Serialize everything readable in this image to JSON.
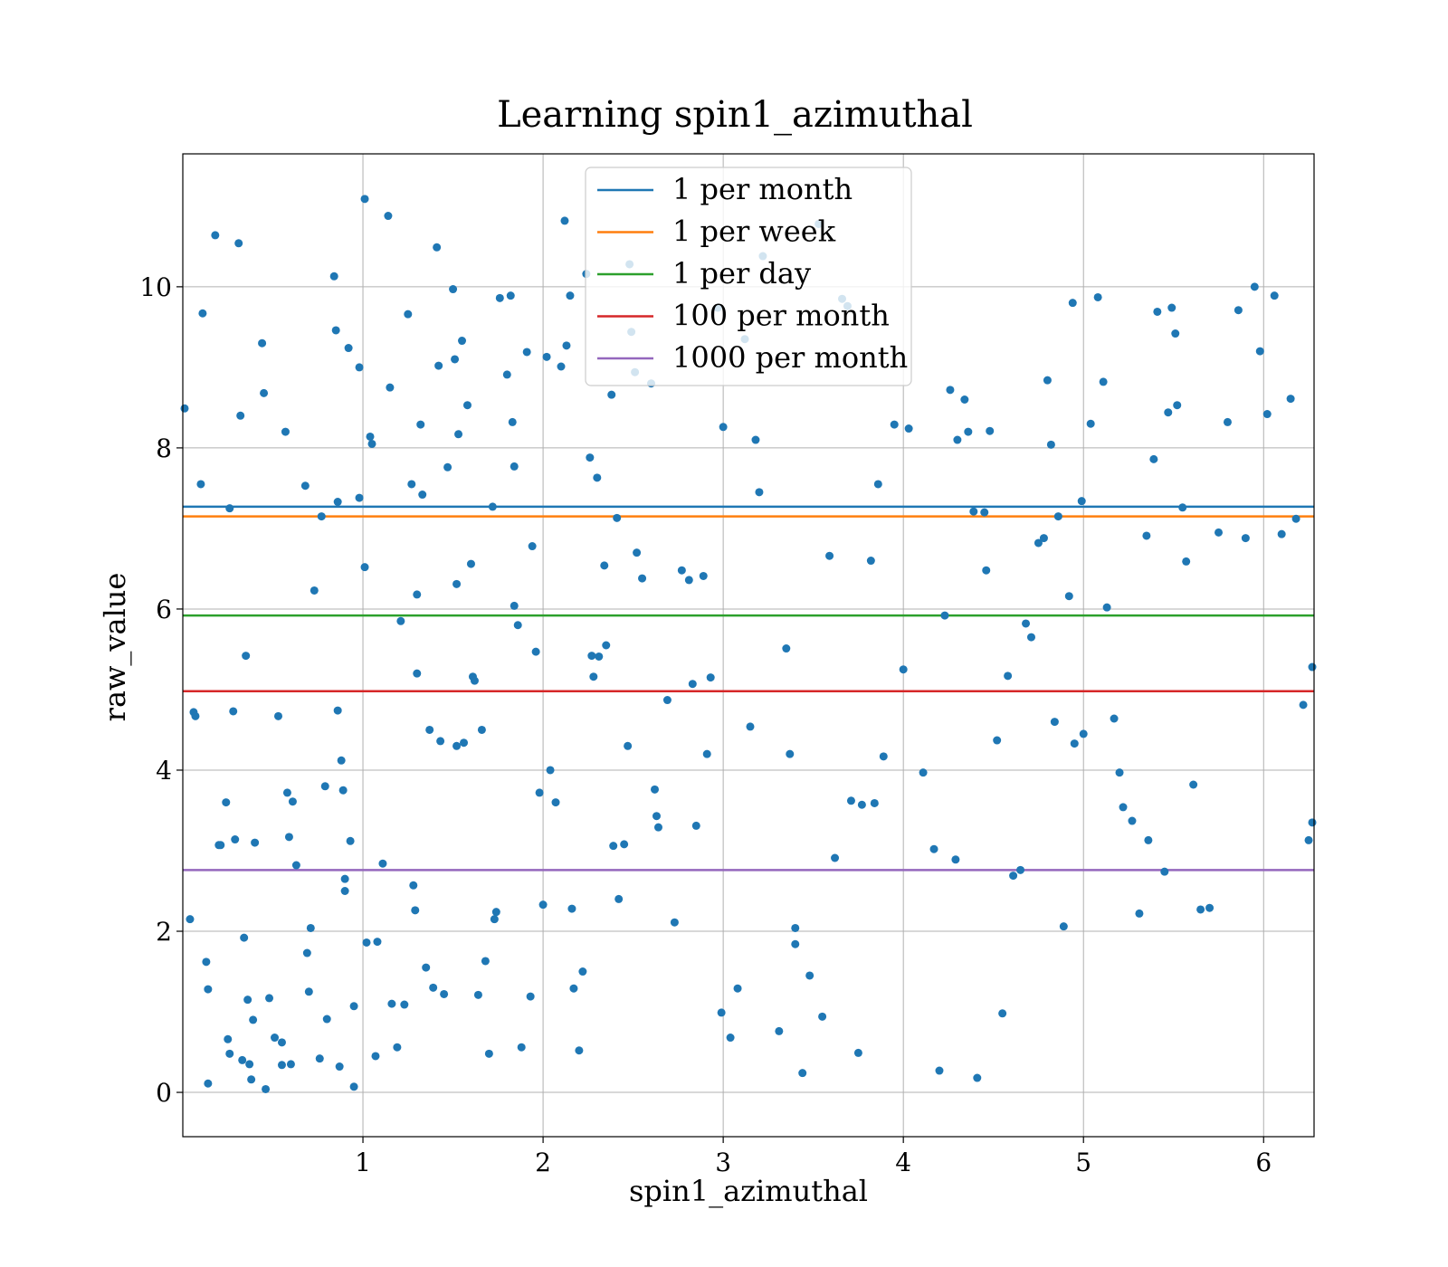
{
  "chart_data": {
    "type": "scatter",
    "title": "Learning spin1_azimuthal",
    "xlabel": "spin1_azimuthal",
    "ylabel": "raw_value",
    "xlim": [
      0.0,
      6.28
    ],
    "ylim": [
      -0.55,
      11.65
    ],
    "xticks": [
      1,
      2,
      3,
      4,
      5,
      6
    ],
    "yticks": [
      0,
      2,
      4,
      6,
      8,
      10
    ],
    "grid": true,
    "legend_position": "upper center",
    "point_color": "#1f77b4",
    "hlines": [
      {
        "name": "1 per month",
        "y": 7.27,
        "color": "#1f77b4"
      },
      {
        "name": "1 per week",
        "y": 7.15,
        "color": "#ff7f0e"
      },
      {
        "name": "1 per day",
        "y": 5.92,
        "color": "#2ca02c"
      },
      {
        "name": "100 per month",
        "y": 4.98,
        "color": "#d62728"
      },
      {
        "name": "1000 per month",
        "y": 2.76,
        "color": "#9467bd"
      }
    ],
    "points": [
      [
        0.01,
        8.49
      ],
      [
        0.04,
        2.15
      ],
      [
        0.06,
        4.72
      ],
      [
        0.07,
        4.67
      ],
      [
        0.1,
        7.55
      ],
      [
        0.11,
        9.67
      ],
      [
        0.14,
        0.11
      ],
      [
        0.13,
        1.62
      ],
      [
        0.14,
        1.28
      ],
      [
        0.18,
        10.64
      ],
      [
        0.2,
        3.07
      ],
      [
        0.21,
        3.07
      ],
      [
        0.24,
        3.6
      ],
      [
        0.26,
        7.25
      ],
      [
        0.25,
        0.66
      ],
      [
        0.26,
        0.48
      ],
      [
        0.28,
        4.73
      ],
      [
        0.29,
        3.14
      ],
      [
        0.31,
        10.54
      ],
      [
        0.32,
        8.4
      ],
      [
        0.33,
        0.4
      ],
      [
        0.34,
        1.92
      ],
      [
        0.35,
        5.42
      ],
      [
        0.36,
        1.15
      ],
      [
        0.37,
        0.35
      ],
      [
        0.38,
        0.16
      ],
      [
        0.39,
        0.9
      ],
      [
        0.4,
        3.1
      ],
      [
        0.44,
        9.3
      ],
      [
        0.45,
        8.68
      ],
      [
        0.46,
        0.04
      ],
      [
        0.48,
        1.17
      ],
      [
        0.51,
        0.68
      ],
      [
        0.53,
        4.67
      ],
      [
        0.55,
        0.62
      ],
      [
        0.55,
        0.34
      ],
      [
        0.57,
        8.2
      ],
      [
        0.58,
        3.72
      ],
      [
        0.59,
        3.17
      ],
      [
        0.61,
        3.61
      ],
      [
        0.6,
        0.35
      ],
      [
        0.63,
        2.82
      ],
      [
        0.68,
        7.53
      ],
      [
        0.69,
        1.73
      ],
      [
        0.7,
        1.25
      ],
      [
        0.71,
        2.04
      ],
      [
        0.73,
        6.23
      ],
      [
        0.76,
        0.42
      ],
      [
        0.77,
        7.15
      ],
      [
        0.79,
        3.8
      ],
      [
        0.8,
        0.91
      ],
      [
        0.84,
        10.13
      ],
      [
        0.85,
        9.46
      ],
      [
        0.86,
        4.74
      ],
      [
        0.86,
        7.33
      ],
      [
        0.87,
        0.32
      ],
      [
        0.88,
        4.12
      ],
      [
        0.89,
        3.75
      ],
      [
        0.9,
        2.65
      ],
      [
        0.9,
        2.5
      ],
      [
        0.92,
        9.24
      ],
      [
        0.93,
        3.12
      ],
      [
        0.95,
        1.07
      ],
      [
        0.95,
        0.07
      ],
      [
        0.98,
        9.0
      ],
      [
        0.98,
        7.38
      ],
      [
        1.01,
        11.09
      ],
      [
        1.01,
        6.52
      ],
      [
        1.02,
        1.86
      ],
      [
        1.04,
        8.14
      ],
      [
        1.05,
        8.05
      ],
      [
        1.07,
        0.45
      ],
      [
        1.08,
        1.87
      ],
      [
        1.11,
        2.84
      ],
      [
        1.14,
        10.88
      ],
      [
        1.15,
        8.75
      ],
      [
        1.16,
        1.1
      ],
      [
        1.19,
        0.56
      ],
      [
        1.21,
        5.85
      ],
      [
        1.23,
        1.09
      ],
      [
        1.25,
        9.66
      ],
      [
        1.27,
        7.55
      ],
      [
        1.28,
        2.57
      ],
      [
        1.29,
        2.26
      ],
      [
        1.3,
        6.18
      ],
      [
        1.3,
        5.2
      ],
      [
        1.32,
        8.29
      ],
      [
        1.33,
        7.42
      ],
      [
        1.35,
        1.55
      ],
      [
        1.37,
        4.5
      ],
      [
        1.39,
        1.3
      ],
      [
        1.41,
        10.49
      ],
      [
        1.42,
        9.02
      ],
      [
        1.43,
        4.36
      ],
      [
        1.45,
        1.22
      ],
      [
        1.47,
        7.76
      ],
      [
        1.5,
        9.97
      ],
      [
        1.51,
        9.1
      ],
      [
        1.52,
        6.31
      ],
      [
        1.52,
        4.3
      ],
      [
        1.53,
        8.17
      ],
      [
        1.55,
        9.33
      ],
      [
        1.56,
        4.34
      ],
      [
        1.58,
        8.53
      ],
      [
        1.6,
        6.56
      ],
      [
        1.61,
        5.16
      ],
      [
        1.62,
        5.11
      ],
      [
        1.64,
        1.21
      ],
      [
        1.66,
        4.5
      ],
      [
        1.68,
        1.63
      ],
      [
        1.7,
        0.48
      ],
      [
        1.72,
        7.27
      ],
      [
        1.73,
        2.15
      ],
      [
        1.74,
        2.24
      ],
      [
        1.76,
        9.86
      ],
      [
        1.8,
        8.91
      ],
      [
        1.82,
        9.89
      ],
      [
        1.84,
        7.77
      ],
      [
        1.83,
        8.32
      ],
      [
        1.84,
        6.04
      ],
      [
        1.86,
        5.8
      ],
      [
        1.88,
        0.56
      ],
      [
        1.91,
        9.19
      ],
      [
        1.93,
        1.19
      ],
      [
        1.94,
        6.78
      ],
      [
        1.96,
        5.47
      ],
      [
        1.98,
        3.72
      ],
      [
        2.0,
        2.33
      ],
      [
        2.02,
        9.13
      ],
      [
        2.04,
        4.0
      ],
      [
        2.07,
        3.6
      ],
      [
        2.1,
        9.01
      ],
      [
        2.12,
        10.82
      ],
      [
        2.13,
        9.27
      ],
      [
        2.15,
        9.89
      ],
      [
        2.16,
        2.28
      ],
      [
        2.17,
        1.29
      ],
      [
        2.2,
        0.52
      ],
      [
        2.22,
        1.5
      ],
      [
        2.24,
        10.16
      ],
      [
        2.26,
        7.88
      ],
      [
        2.27,
        5.42
      ],
      [
        2.28,
        5.16
      ],
      [
        2.3,
        7.63
      ],
      [
        2.31,
        5.41
      ],
      [
        2.34,
        6.54
      ],
      [
        2.35,
        5.55
      ],
      [
        2.38,
        8.66
      ],
      [
        2.39,
        3.06
      ],
      [
        2.41,
        7.13
      ],
      [
        2.42,
        2.4
      ],
      [
        2.45,
        3.08
      ],
      [
        2.47,
        4.3
      ],
      [
        2.48,
        10.28
      ],
      [
        2.49,
        9.44
      ],
      [
        2.51,
        8.94
      ],
      [
        2.52,
        6.7
      ],
      [
        2.55,
        6.38
      ],
      [
        2.6,
        8.8
      ],
      [
        2.62,
        3.76
      ],
      [
        2.63,
        3.43
      ],
      [
        2.64,
        3.29
      ],
      [
        2.69,
        4.87
      ],
      [
        2.73,
        2.11
      ],
      [
        2.77,
        6.48
      ],
      [
        2.81,
        6.36
      ],
      [
        2.83,
        5.07
      ],
      [
        2.85,
        3.31
      ],
      [
        2.89,
        6.41
      ],
      [
        2.91,
        4.2
      ],
      [
        2.93,
        5.15
      ],
      [
        2.97,
        9.74
      ],
      [
        2.99,
        0.99
      ],
      [
        3.0,
        8.26
      ],
      [
        3.04,
        0.68
      ],
      [
        3.08,
        1.29
      ],
      [
        3.12,
        9.35
      ],
      [
        3.15,
        4.54
      ],
      [
        3.18,
        8.1
      ],
      [
        3.2,
        7.45
      ],
      [
        3.22,
        10.38
      ],
      [
        3.31,
        0.76
      ],
      [
        3.35,
        5.51
      ],
      [
        3.37,
        4.2
      ],
      [
        3.4,
        2.04
      ],
      [
        3.4,
        1.84
      ],
      [
        3.44,
        0.24
      ],
      [
        3.48,
        1.45
      ],
      [
        3.53,
        10.78
      ],
      [
        3.55,
        0.94
      ],
      [
        3.59,
        6.66
      ],
      [
        3.62,
        2.91
      ],
      [
        3.66,
        9.85
      ],
      [
        3.69,
        9.76
      ],
      [
        3.71,
        3.62
      ],
      [
        3.75,
        0.49
      ],
      [
        3.77,
        3.57
      ],
      [
        3.82,
        6.6
      ],
      [
        3.84,
        3.59
      ],
      [
        3.86,
        7.55
      ],
      [
        3.89,
        4.17
      ],
      [
        3.95,
        8.29
      ],
      [
        4.0,
        5.25
      ],
      [
        4.03,
        8.24
      ],
      [
        4.11,
        3.97
      ],
      [
        4.17,
        3.02
      ],
      [
        4.2,
        0.27
      ],
      [
        4.23,
        5.92
      ],
      [
        4.26,
        8.72
      ],
      [
        4.29,
        2.89
      ],
      [
        4.3,
        8.1
      ],
      [
        4.34,
        8.6
      ],
      [
        4.36,
        8.2
      ],
      [
        4.39,
        7.21
      ],
      [
        4.41,
        0.18
      ],
      [
        4.45,
        7.2
      ],
      [
        4.46,
        6.48
      ],
      [
        4.48,
        8.21
      ],
      [
        4.52,
        4.37
      ],
      [
        4.55,
        0.98
      ],
      [
        4.58,
        5.17
      ],
      [
        4.61,
        2.69
      ],
      [
        4.65,
        2.76
      ],
      [
        4.68,
        5.82
      ],
      [
        4.71,
        5.65
      ],
      [
        4.75,
        6.82
      ],
      [
        4.78,
        6.88
      ],
      [
        4.8,
        8.84
      ],
      [
        4.82,
        8.04
      ],
      [
        4.84,
        4.6
      ],
      [
        4.86,
        7.15
      ],
      [
        4.89,
        2.06
      ],
      [
        4.92,
        6.16
      ],
      [
        4.94,
        9.8
      ],
      [
        4.95,
        4.33
      ],
      [
        4.99,
        7.34
      ],
      [
        5.0,
        4.45
      ],
      [
        5.04,
        8.3
      ],
      [
        5.08,
        9.87
      ],
      [
        5.11,
        8.82
      ],
      [
        5.13,
        6.02
      ],
      [
        5.17,
        4.64
      ],
      [
        5.2,
        3.97
      ],
      [
        5.22,
        3.54
      ],
      [
        5.27,
        3.37
      ],
      [
        5.31,
        2.22
      ],
      [
        5.35,
        6.91
      ],
      [
        5.36,
        3.13
      ],
      [
        5.39,
        7.86
      ],
      [
        5.41,
        9.69
      ],
      [
        5.45,
        2.74
      ],
      [
        5.47,
        8.44
      ],
      [
        5.49,
        9.74
      ],
      [
        5.51,
        9.42
      ],
      [
        5.52,
        8.53
      ],
      [
        5.55,
        7.26
      ],
      [
        5.57,
        6.59
      ],
      [
        5.61,
        3.82
      ],
      [
        5.65,
        2.27
      ],
      [
        5.7,
        2.29
      ],
      [
        5.75,
        6.95
      ],
      [
        5.8,
        8.32
      ],
      [
        5.86,
        9.71
      ],
      [
        5.9,
        6.88
      ],
      [
        5.95,
        10.0
      ],
      [
        5.98,
        9.2
      ],
      [
        6.02,
        8.42
      ],
      [
        6.06,
        9.89
      ],
      [
        6.1,
        6.93
      ],
      [
        6.15,
        8.61
      ],
      [
        6.18,
        7.12
      ],
      [
        6.22,
        4.81
      ],
      [
        6.25,
        3.13
      ],
      [
        6.27,
        5.28
      ],
      [
        6.27,
        3.35
      ]
    ]
  }
}
